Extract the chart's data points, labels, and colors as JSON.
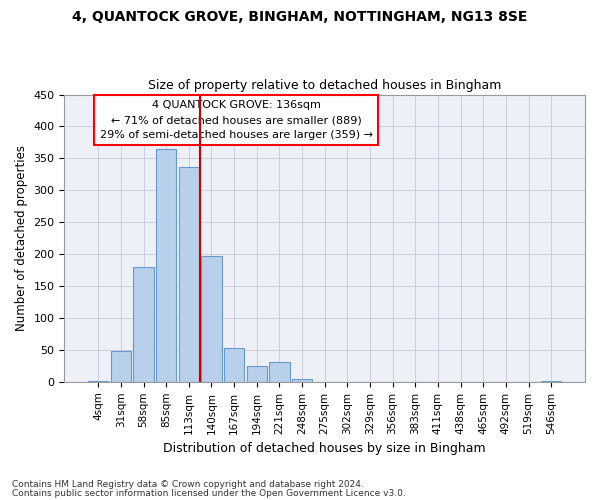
{
  "title1": "4, QUANTOCK GROVE, BINGHAM, NOTTINGHAM, NG13 8SE",
  "title2": "Size of property relative to detached houses in Bingham",
  "xlabel": "Distribution of detached houses by size in Bingham",
  "ylabel": "Number of detached properties",
  "categories": [
    "4sqm",
    "31sqm",
    "58sqm",
    "85sqm",
    "113sqm",
    "140sqm",
    "167sqm",
    "194sqm",
    "221sqm",
    "248sqm",
    "275sqm",
    "302sqm",
    "329sqm",
    "356sqm",
    "383sqm",
    "411sqm",
    "438sqm",
    "465sqm",
    "492sqm",
    "519sqm",
    "546sqm"
  ],
  "bar_heights": [
    2,
    48,
    180,
    365,
    337,
    197,
    53,
    25,
    31,
    5,
    0,
    0,
    0,
    0,
    0,
    0,
    0,
    0,
    0,
    0,
    2
  ],
  "bar_color": "#b8d0ea",
  "bar_edge_color": "#6699cc",
  "grid_color": "#ccccdd",
  "vline_color": "#cc0000",
  "vline_x_index": 5,
  "annotation_box_text": "4 QUANTOCK GROVE: 136sqm\n← 71% of detached houses are smaller (889)\n29% of semi-detached houses are larger (359) →",
  "footnote1": "Contains HM Land Registry data © Crown copyright and database right 2024.",
  "footnote2": "Contains public sector information licensed under the Open Government Licence v3.0.",
  "ylim": [
    0,
    450
  ],
  "yticks": [
    0,
    50,
    100,
    150,
    200,
    250,
    300,
    350,
    400,
    450
  ],
  "background_color": "#ffffff",
  "plot_bg_color": "#eef0f8"
}
